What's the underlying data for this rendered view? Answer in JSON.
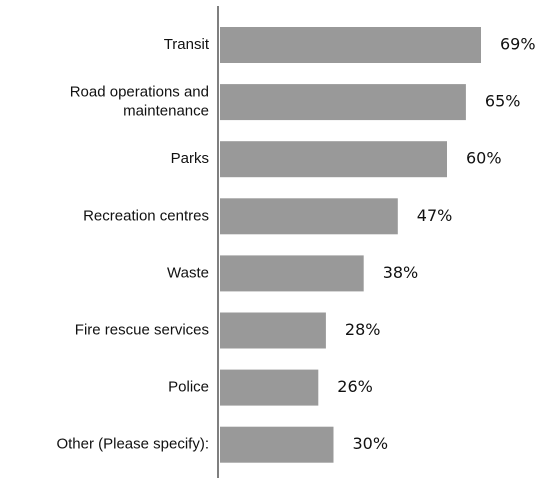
{
  "chart_data": {
    "type": "bar",
    "orientation": "horizontal",
    "categories": [
      [
        "Transit"
      ],
      [
        "Road operations and",
        "maintenance"
      ],
      [
        "Parks"
      ],
      [
        "Recreation centres"
      ],
      [
        "Waste"
      ],
      [
        "Fire rescue services"
      ],
      [
        "Police"
      ],
      [
        "Other (Please specify):"
      ]
    ],
    "values": [
      69,
      65,
      60,
      47,
      38,
      28,
      26,
      30
    ],
    "value_labels": [
      "69%",
      "65%",
      "60%",
      "47%",
      "38%",
      "28%",
      "26%",
      "30%"
    ],
    "unit": "%",
    "xlim": [
      0,
      70
    ],
    "grid": false,
    "legend": "none",
    "colors": {
      "bar": "#999999",
      "axis": "#555555",
      "text": "#111111"
    }
  }
}
